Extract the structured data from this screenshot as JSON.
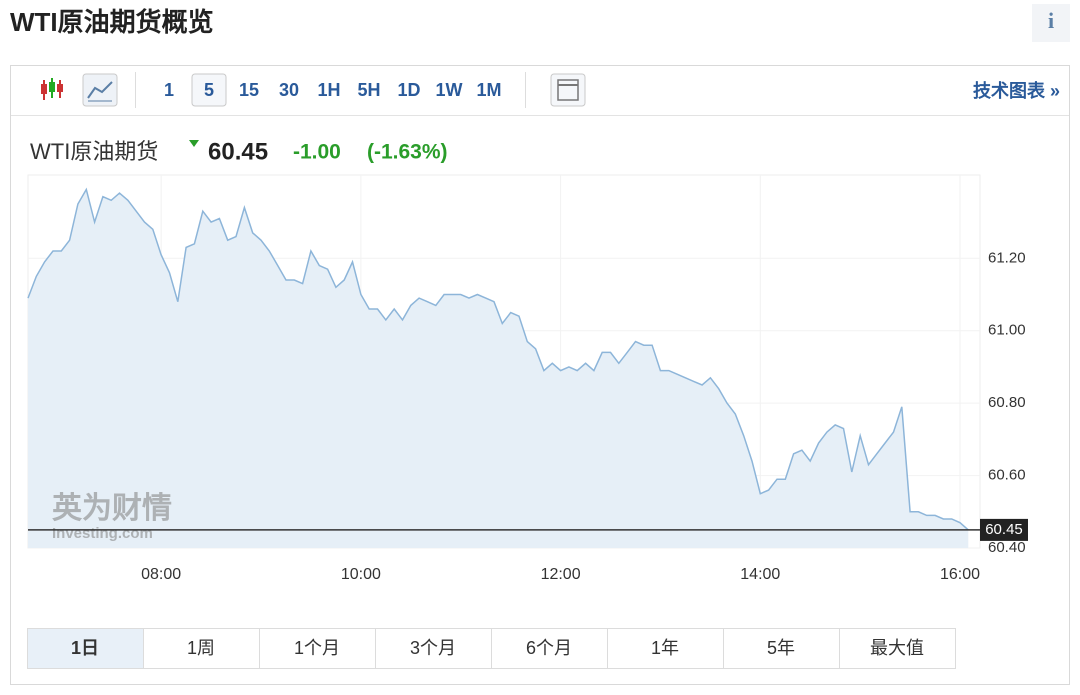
{
  "header": {
    "title": "WTI原油期货概览",
    "info": "i"
  },
  "toolbar": {
    "intervals": [
      "1",
      "5",
      "15",
      "30",
      "1H",
      "5H",
      "1D",
      "1W",
      "1M"
    ],
    "selected": 1,
    "tech_chart": "技术图表 »"
  },
  "quote": {
    "name": "WTI原油期货",
    "price": "60.45",
    "change": "-1.00",
    "change_pct": "(-1.63%)"
  },
  "chart_data": {
    "type": "area",
    "color": "#8db5d9",
    "fill": "#e6eff7",
    "grid": true,
    "x": [
      400,
      405,
      410,
      415,
      420,
      425,
      430,
      435,
      440,
      445,
      450,
      455,
      460,
      465,
      470,
      475,
      480,
      485,
      490,
      495,
      500,
      505,
      510,
      515,
      520,
      525,
      530,
      535,
      540,
      545,
      550,
      555,
      560,
      565,
      570,
      575,
      580,
      585,
      590,
      595,
      600,
      605,
      610,
      615,
      620,
      625,
      630,
      635,
      640,
      645,
      650,
      655,
      660,
      665,
      670,
      675,
      680,
      685,
      690,
      695,
      700,
      705,
      710,
      715,
      720,
      725,
      730,
      735,
      740,
      745,
      750,
      755,
      760,
      765,
      770,
      775,
      780,
      785,
      790,
      795,
      800,
      805,
      810,
      815,
      820,
      825,
      830,
      835,
      840,
      845,
      850,
      855,
      860,
      865,
      870,
      875,
      880,
      885,
      890,
      895,
      900,
      905,
      910,
      915,
      920,
      925,
      930,
      935,
      940,
      945,
      950,
      955,
      960,
      965
    ],
    "values": [
      61.09,
      61.15,
      61.19,
      61.22,
      61.22,
      61.25,
      61.35,
      61.39,
      61.3,
      61.37,
      61.36,
      61.38,
      61.36,
      61.33,
      61.3,
      61.28,
      61.21,
      61.16,
      61.08,
      61.23,
      61.24,
      61.33,
      61.3,
      61.31,
      61.25,
      61.26,
      61.34,
      61.27,
      61.25,
      61.22,
      61.18,
      61.14,
      61.14,
      61.13,
      61.22,
      61.18,
      61.17,
      61.12,
      61.14,
      61.19,
      61.1,
      61.06,
      61.06,
      61.03,
      61.06,
      61.03,
      61.07,
      61.09,
      61.08,
      61.07,
      61.1,
      61.1,
      61.1,
      61.09,
      61.1,
      61.09,
      61.08,
      61.02,
      61.05,
      61.04,
      60.97,
      60.95,
      60.89,
      60.91,
      60.89,
      60.9,
      60.89,
      60.91,
      60.89,
      60.94,
      60.94,
      60.91,
      60.94,
      60.97,
      60.96,
      60.96,
      60.89,
      60.89,
      60.88,
      60.87,
      60.86,
      60.85,
      60.87,
      60.84,
      60.8,
      60.77,
      60.71,
      60.64,
      60.55,
      60.56,
      60.59,
      60.59,
      60.66,
      60.67,
      60.64,
      60.69,
      60.72,
      60.74,
      60.73,
      60.61,
      60.71,
      60.63,
      60.66,
      60.69,
      60.72,
      60.79,
      60.5,
      60.5,
      60.49,
      60.49,
      60.48,
      60.48,
      60.47,
      60.45
    ],
    "xlim": [
      400,
      972
    ],
    "ylim": [
      60.4,
      61.43
    ],
    "xticks": [
      {
        "value": 480,
        "label": "08:00"
      },
      {
        "value": 600,
        "label": "10:00"
      },
      {
        "value": 720,
        "label": "12:00"
      },
      {
        "value": 840,
        "label": "14:00"
      },
      {
        "value": 960,
        "label": "16:00"
      }
    ],
    "yticks": [
      {
        "value": 60.4,
        "label": "60.40"
      },
      {
        "value": 60.6,
        "label": "60.60"
      },
      {
        "value": 60.8,
        "label": "60.80"
      },
      {
        "value": 61.0,
        "label": "61.00"
      },
      {
        "value": 61.2,
        "label": "61.20"
      }
    ]
  },
  "watermark": {
    "brand": "英为财情",
    "site": "Investing.com"
  },
  "ranges": {
    "buttons": [
      "1日",
      "1周",
      "1个月",
      "3个月",
      "6个月",
      "1年",
      "5年",
      "最大值"
    ],
    "selected": 0
  }
}
